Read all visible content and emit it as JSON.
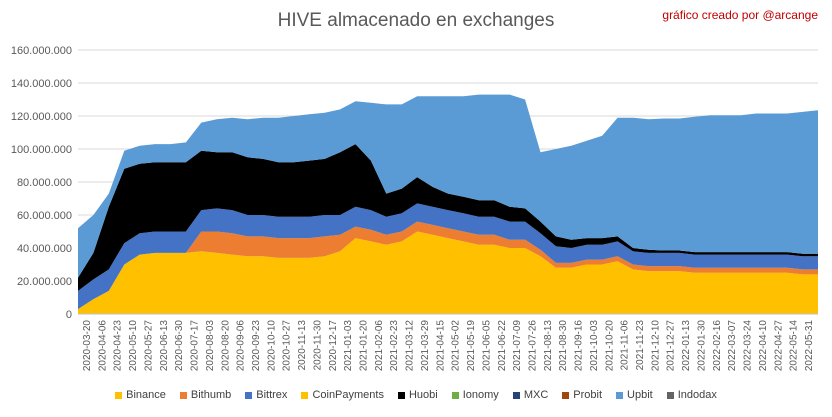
{
  "title": "HIVE almacenado en exchanges",
  "credit": "gráfico creado por @arcange",
  "chart_data": {
    "type": "area",
    "stacked": true,
    "title": "HIVE almacenado en exchanges",
    "ylim": [
      0,
      160000000
    ],
    "y_ticks": [
      "0",
      "20.000.000",
      "40.000.000",
      "60.000.000",
      "80.000.000",
      "100.000.000",
      "120.000.000",
      "140.000.000",
      "160.000.000"
    ],
    "x": [
      "2020-03-20",
      "2020-04-06",
      "2020-04-23",
      "2020-05-10",
      "2020-05-27",
      "2020-06-13",
      "2020-06-30",
      "2020-07-17",
      "2020-08-03",
      "2020-08-20",
      "2020-09-06",
      "2020-09-23",
      "2020-10-10",
      "2020-10-27",
      "2020-11-13",
      "2020-11-30",
      "2020-12-17",
      "2021-01-03",
      "2021-01-20",
      "2021-02-06",
      "2021-02-23",
      "2021-03-12",
      "2021-03-29",
      "2021-04-15",
      "2021-05-02",
      "2021-05-19",
      "2021-06-05",
      "2021-06-22",
      "2021-07-09",
      "2021-07-26",
      "2021-08-12",
      "2021-08-29",
      "2021-09-15",
      "2021-10-02",
      "2021-10-19",
      "2021-11-05",
      "2021-11-22",
      "2021-12-09",
      "2021-12-26",
      "2022-01-12",
      "2022-01-29",
      "2022-02-15",
      "2022-03-04",
      "2022-03-21",
      "2022-04-07",
      "2022-04-24",
      "2022-05-11",
      "2022-05-28",
      "2022-06-14"
    ],
    "x_tick_labels": [
      "2020-03-20",
      "2020-04-06",
      "2020-04-23",
      "2020-05-10",
      "2020-05-27",
      "2020-06-13",
      "2020-06-30",
      "2020-07-17",
      "2020-08-03",
      "2020-08-20",
      "2020-09-06",
      "2020-09-23",
      "2020-10-10",
      "2020-10-27",
      "2020-11-13",
      "2020-11-30",
      "2020-12-17",
      "2021-01-03",
      "2021-01-20",
      "2021-02-06",
      "2021-02-23",
      "2021-03-12",
      "2021-03-29",
      "2021-04-15",
      "2021-05-02",
      "2021-05-19",
      "2021-06-05",
      "2021-06-22",
      "2021-07-09",
      "2021-07-26",
      "2021-08-13",
      "2021-08-30",
      "2021-09-16",
      "2021-10-03",
      "2021-10-20",
      "2021-11-06",
      "2021-11-23",
      "2021-12-10",
      "2021-12-27",
      "2022-01-13",
      "2022-01-30",
      "2022-02-16",
      "2022-03-07",
      "2022-03-24",
      "2022-04-10",
      "2022-04-27",
      "2022-05-14",
      "2022-05-31"
    ],
    "series": [
      {
        "name": "Binance",
        "color": "#ffc000",
        "values": [
          3,
          9,
          14,
          30,
          36,
          37,
          37,
          37,
          38,
          37,
          36,
          35,
          35,
          34,
          34,
          34,
          35,
          38,
          46,
          44,
          42,
          44,
          50,
          48,
          46,
          44,
          42,
          42,
          40,
          40,
          35,
          28,
          28,
          30,
          30,
          32,
          27,
          26,
          26,
          26,
          25,
          25,
          25,
          25,
          25,
          25,
          25,
          24,
          24
        ]
      },
      {
        "name": "Bithumb",
        "color": "#ed7d31",
        "values": [
          0,
          0,
          0,
          0,
          0,
          0,
          0,
          0,
          12,
          13,
          13,
          12,
          12,
          12,
          12,
          12,
          12,
          10,
          7,
          7,
          6,
          6,
          6,
          6,
          6,
          6,
          6,
          6,
          5,
          5,
          4,
          3,
          3,
          3,
          3,
          3,
          3,
          3,
          3,
          3,
          3,
          3,
          3,
          3,
          3,
          3,
          3,
          3,
          3
        ]
      },
      {
        "name": "Bittrex",
        "color": "#4472c4",
        "values": [
          11,
          12,
          13,
          13,
          13,
          13,
          13,
          13,
          13,
          14,
          14,
          13,
          13,
          13,
          13,
          13,
          13,
          12,
          12,
          12,
          11,
          11,
          11,
          11,
          11,
          11,
          11,
          11,
          11,
          11,
          10,
          10,
          9,
          9,
          9,
          9,
          8,
          8,
          8,
          8,
          8,
          8,
          8,
          8,
          8,
          8,
          8,
          8,
          8
        ]
      },
      {
        "name": "CoinPayments",
        "color": "#ffc000",
        "values": [
          0,
          0,
          0,
          0,
          0,
          0,
          0,
          0,
          0,
          0,
          0,
          0,
          0,
          0,
          0,
          0,
          0,
          0,
          0,
          0,
          0,
          0,
          0,
          0,
          0,
          0,
          0,
          0,
          0,
          0,
          0,
          0,
          0,
          0,
          0,
          0,
          0,
          0,
          0,
          0,
          0,
          0,
          0,
          0,
          0,
          0,
          0,
          0,
          0
        ]
      },
      {
        "name": "Huobi",
        "color": "#000000",
        "values": [
          8,
          16,
          38,
          45,
          42,
          42,
          42,
          42,
          36,
          34,
          35,
          35,
          34,
          33,
          33,
          34,
          34,
          38,
          38,
          30,
          14,
          15,
          16,
          12,
          10,
          10,
          10,
          10,
          9,
          8,
          7,
          6,
          5,
          4,
          4,
          3,
          2,
          2,
          1.5,
          1.5,
          1.5,
          1.5,
          1.5,
          1.5,
          1.5,
          1.5,
          1.5,
          1.5,
          1.5
        ]
      },
      {
        "name": "Ionomy",
        "color": "#70ad47",
        "values": [
          0,
          0,
          0,
          0,
          0,
          0,
          0,
          0,
          0,
          0,
          0,
          0,
          0,
          0,
          0,
          0,
          0,
          0,
          0,
          0,
          0,
          0,
          0,
          0,
          0,
          0,
          0,
          0,
          0,
          0,
          0,
          0,
          0,
          0,
          0,
          0,
          0,
          0,
          0,
          0,
          0,
          0,
          0,
          0,
          0,
          0,
          0,
          0,
          0
        ]
      },
      {
        "name": "MXC",
        "color": "#264478",
        "values": [
          0,
          0,
          0,
          0,
          0,
          0,
          0,
          0,
          0,
          0,
          0,
          0,
          0,
          0,
          0,
          0,
          0,
          0,
          0,
          0,
          0,
          0,
          0,
          0,
          0,
          0,
          0,
          0,
          0,
          0,
          0,
          0,
          0,
          0,
          0,
          0,
          0,
          0,
          0,
          0,
          0,
          0,
          0,
          0,
          0,
          0,
          0,
          0,
          0
        ]
      },
      {
        "name": "Probit",
        "color": "#9e480e",
        "values": [
          0,
          0,
          0,
          0,
          0,
          0,
          0,
          0,
          0,
          0,
          0,
          0,
          0,
          0,
          0,
          0,
          0,
          0,
          0,
          0,
          0,
          0,
          0,
          0,
          0,
          0,
          0,
          0,
          0,
          0,
          0,
          0,
          0,
          0,
          0,
          0,
          0,
          0,
          0,
          0,
          0,
          0,
          0,
          0,
          0,
          0,
          0,
          0,
          0
        ]
      },
      {
        "name": "Upbit",
        "color": "#5b9bd5",
        "values": [
          30,
          23,
          8,
          11,
          11,
          11,
          11,
          12,
          17,
          20,
          21,
          23,
          25,
          27,
          28,
          28,
          28,
          26,
          26,
          35,
          54,
          51,
          49,
          55,
          59,
          61,
          64,
          64,
          68,
          66,
          42,
          53,
          57,
          59,
          62,
          72,
          79,
          79,
          80,
          80,
          82,
          83,
          83,
          83,
          84,
          84,
          84,
          86,
          87
        ]
      },
      {
        "name": "Indodax",
        "color": "#636363",
        "values": [
          0,
          0,
          0,
          0,
          0,
          0,
          0,
          0,
          0,
          0,
          0,
          0,
          0,
          0,
          0,
          0,
          0,
          0,
          0,
          0,
          0,
          0,
          0,
          0,
          0,
          0,
          0,
          0,
          0,
          0,
          0,
          0,
          0,
          0,
          0,
          0,
          0,
          0,
          0,
          0,
          0,
          0,
          0,
          0,
          0,
          0,
          0,
          0,
          0
        ]
      }
    ],
    "value_unit_multiplier": 1000000,
    "legend_position": "bottom",
    "grid": true
  }
}
